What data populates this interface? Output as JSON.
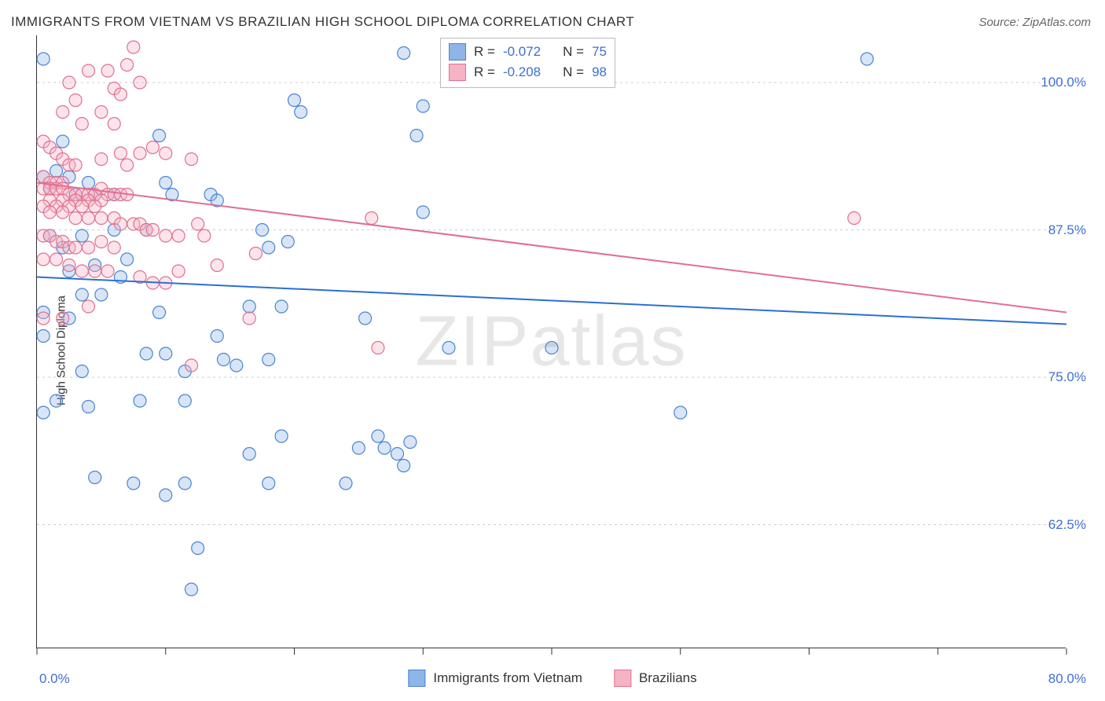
{
  "title": "IMMIGRANTS FROM VIETNAM VS BRAZILIAN HIGH SCHOOL DIPLOMA CORRELATION CHART",
  "source": "Source: ZipAtlas.com",
  "y_axis_label": "High School Diploma",
  "watermark": {
    "part1": "ZIP",
    "part2": "atlas"
  },
  "chart": {
    "type": "scatter",
    "background_color": "#ffffff",
    "grid_color": "#cccccc",
    "axis_color": "#333333",
    "tick_label_color": "#3d6fd6",
    "xlim": [
      0,
      80
    ],
    "ylim": [
      52,
      104
    ],
    "x_tick_positions": [
      0,
      10,
      20,
      30,
      40,
      50,
      60,
      70,
      80
    ],
    "x_tick_labels": {
      "min": "0.0%",
      "max": "80.0%"
    },
    "y_ticks": [
      {
        "value": 62.5,
        "label": "62.5%"
      },
      {
        "value": 75.0,
        "label": "75.0%"
      },
      {
        "value": 87.5,
        "label": "87.5%"
      },
      {
        "value": 100.0,
        "label": "100.0%"
      }
    ],
    "marker_radius": 8,
    "marker_stroke_width": 1.2,
    "marker_fill_opacity": 0.35,
    "trendline_width": 2,
    "series": [
      {
        "id": "vietnam",
        "label": "Immigrants from Vietnam",
        "fill_color": "#8db5e8",
        "stroke_color": "#4a84d1",
        "trendline_color": "#2a6fd6",
        "R": "-0.072",
        "N": "75",
        "trendline": {
          "x1": 0,
          "y1": 83.5,
          "x2": 80,
          "y2": 79.5
        },
        "points": [
          [
            28.5,
            102.5
          ],
          [
            64.5,
            102.0
          ],
          [
            0.5,
            102.0
          ],
          [
            20.0,
            98.5
          ],
          [
            20.5,
            97.5
          ],
          [
            30.0,
            98.0
          ],
          [
            29.5,
            95.5
          ],
          [
            9.5,
            95.5
          ],
          [
            2.0,
            95.0
          ],
          [
            1.5,
            92.5
          ],
          [
            0.5,
            92.0
          ],
          [
            2.5,
            92.0
          ],
          [
            4.0,
            91.5
          ],
          [
            4.5,
            90.5
          ],
          [
            3.0,
            90.5
          ],
          [
            1.0,
            91.0
          ],
          [
            6.0,
            90.5
          ],
          [
            10.0,
            91.5
          ],
          [
            10.5,
            90.5
          ],
          [
            13.5,
            90.5
          ],
          [
            14.0,
            90.0
          ],
          [
            6.0,
            87.5
          ],
          [
            8.5,
            87.5
          ],
          [
            1.0,
            87.0
          ],
          [
            3.5,
            87.0
          ],
          [
            30.0,
            89.0
          ],
          [
            17.5,
            87.5
          ],
          [
            19.5,
            86.5
          ],
          [
            18.0,
            86.0
          ],
          [
            2.0,
            86.0
          ],
          [
            7.0,
            85.0
          ],
          [
            4.5,
            84.5
          ],
          [
            2.5,
            84.0
          ],
          [
            6.5,
            83.5
          ],
          [
            3.5,
            82.0
          ],
          [
            5.0,
            82.0
          ],
          [
            0.5,
            80.5
          ],
          [
            9.5,
            80.5
          ],
          [
            16.5,
            81.0
          ],
          [
            19.0,
            81.0
          ],
          [
            2.5,
            80.0
          ],
          [
            0.5,
            78.5
          ],
          [
            25.5,
            80.0
          ],
          [
            14.0,
            78.5
          ],
          [
            32.0,
            77.5
          ],
          [
            8.5,
            77.0
          ],
          [
            10.0,
            77.0
          ],
          [
            3.5,
            75.5
          ],
          [
            11.5,
            75.5
          ],
          [
            18.0,
            76.5
          ],
          [
            14.5,
            76.5
          ],
          [
            15.5,
            76.0
          ],
          [
            1.5,
            73.0
          ],
          [
            8.0,
            73.0
          ],
          [
            11.5,
            73.0
          ],
          [
            4.0,
            72.5
          ],
          [
            0.5,
            72.0
          ],
          [
            50.0,
            72.0
          ],
          [
            19.0,
            70.0
          ],
          [
            16.5,
            68.5
          ],
          [
            25.0,
            69.0
          ],
          [
            27.0,
            69.0
          ],
          [
            26.5,
            70.0
          ],
          [
            29.0,
            69.5
          ],
          [
            12.5,
            60.5
          ],
          [
            12.0,
            57.0
          ],
          [
            10.0,
            65.0
          ],
          [
            4.5,
            66.5
          ],
          [
            7.5,
            66.0
          ],
          [
            11.5,
            66.0
          ],
          [
            18.0,
            66.0
          ],
          [
            24.0,
            66.0
          ],
          [
            28.0,
            68.5
          ],
          [
            28.5,
            67.5
          ],
          [
            40.0,
            77.5
          ]
        ]
      },
      {
        "id": "brazil",
        "label": "Brazilians",
        "fill_color": "#f5b3c3",
        "stroke_color": "#e0708f",
        "trendline_color": "#e0708f",
        "R": "-0.208",
        "N": "98",
        "trendline": {
          "x1": 0,
          "y1": 91.5,
          "x2": 80,
          "y2": 80.5
        },
        "points": [
          [
            7.5,
            103.0
          ],
          [
            7.0,
            101.5
          ],
          [
            4.0,
            101.0
          ],
          [
            5.5,
            101.0
          ],
          [
            2.5,
            100.0
          ],
          [
            8.0,
            100.0
          ],
          [
            6.0,
            99.5
          ],
          [
            6.5,
            99.0
          ],
          [
            3.0,
            98.5
          ],
          [
            2.0,
            97.5
          ],
          [
            5.0,
            97.5
          ],
          [
            3.5,
            96.5
          ],
          [
            6.0,
            96.5
          ],
          [
            0.5,
            95.0
          ],
          [
            1.0,
            94.5
          ],
          [
            1.5,
            94.0
          ],
          [
            2.0,
            93.5
          ],
          [
            2.5,
            93.0
          ],
          [
            3.0,
            93.0
          ],
          [
            5.0,
            93.5
          ],
          [
            6.5,
            94.0
          ],
          [
            7.0,
            93.0
          ],
          [
            8.0,
            94.0
          ],
          [
            9.0,
            94.5
          ],
          [
            10.0,
            94.0
          ],
          [
            12.0,
            93.5
          ],
          [
            0.5,
            92.0
          ],
          [
            1.0,
            91.5
          ],
          [
            1.5,
            91.5
          ],
          [
            2.0,
            91.5
          ],
          [
            0.5,
            91.0
          ],
          [
            1.0,
            91.0
          ],
          [
            1.5,
            91.0
          ],
          [
            2.0,
            91.0
          ],
          [
            2.5,
            90.5
          ],
          [
            3.0,
            90.5
          ],
          [
            3.5,
            90.5
          ],
          [
            4.0,
            90.5
          ],
          [
            4.5,
            90.5
          ],
          [
            5.0,
            91.0
          ],
          [
            5.5,
            90.5
          ],
          [
            6.0,
            90.5
          ],
          [
            6.5,
            90.5
          ],
          [
            7.0,
            90.5
          ],
          [
            1.0,
            90.0
          ],
          [
            2.0,
            90.0
          ],
          [
            3.0,
            90.0
          ],
          [
            4.0,
            90.0
          ],
          [
            5.0,
            90.0
          ],
          [
            0.5,
            89.5
          ],
          [
            1.5,
            89.5
          ],
          [
            2.5,
            89.5
          ],
          [
            3.5,
            89.5
          ],
          [
            4.5,
            89.5
          ],
          [
            1.0,
            89.0
          ],
          [
            2.0,
            89.0
          ],
          [
            3.0,
            88.5
          ],
          [
            4.0,
            88.5
          ],
          [
            5.0,
            88.5
          ],
          [
            6.0,
            88.5
          ],
          [
            6.5,
            88.0
          ],
          [
            7.5,
            88.0
          ],
          [
            8.0,
            88.0
          ],
          [
            8.5,
            87.5
          ],
          [
            9.0,
            87.5
          ],
          [
            10.0,
            87.0
          ],
          [
            11.0,
            87.0
          ],
          [
            12.5,
            88.0
          ],
          [
            13.0,
            87.0
          ],
          [
            0.5,
            87.0
          ],
          [
            1.0,
            87.0
          ],
          [
            1.5,
            86.5
          ],
          [
            2.0,
            86.5
          ],
          [
            2.5,
            86.0
          ],
          [
            3.0,
            86.0
          ],
          [
            4.0,
            86.0
          ],
          [
            5.0,
            86.5
          ],
          [
            6.0,
            86.0
          ],
          [
            0.5,
            85.0
          ],
          [
            1.5,
            85.0
          ],
          [
            2.5,
            84.5
          ],
          [
            3.5,
            84.0
          ],
          [
            4.5,
            84.0
          ],
          [
            5.5,
            84.0
          ],
          [
            8.0,
            83.5
          ],
          [
            9.0,
            83.0
          ],
          [
            10.0,
            83.0
          ],
          [
            11.0,
            84.0
          ],
          [
            14.0,
            84.5
          ],
          [
            17.0,
            85.5
          ],
          [
            26.0,
            88.5
          ],
          [
            63.5,
            88.5
          ],
          [
            0.5,
            80.0
          ],
          [
            2.0,
            80.0
          ],
          [
            4.0,
            81.0
          ],
          [
            12.0,
            76.0
          ],
          [
            26.5,
            77.5
          ],
          [
            16.5,
            80.0
          ]
        ]
      }
    ]
  },
  "stats_labels": {
    "R": "R =",
    "N": "N ="
  },
  "swatch_border_mod": "rgba(0,0,0,0.15)"
}
